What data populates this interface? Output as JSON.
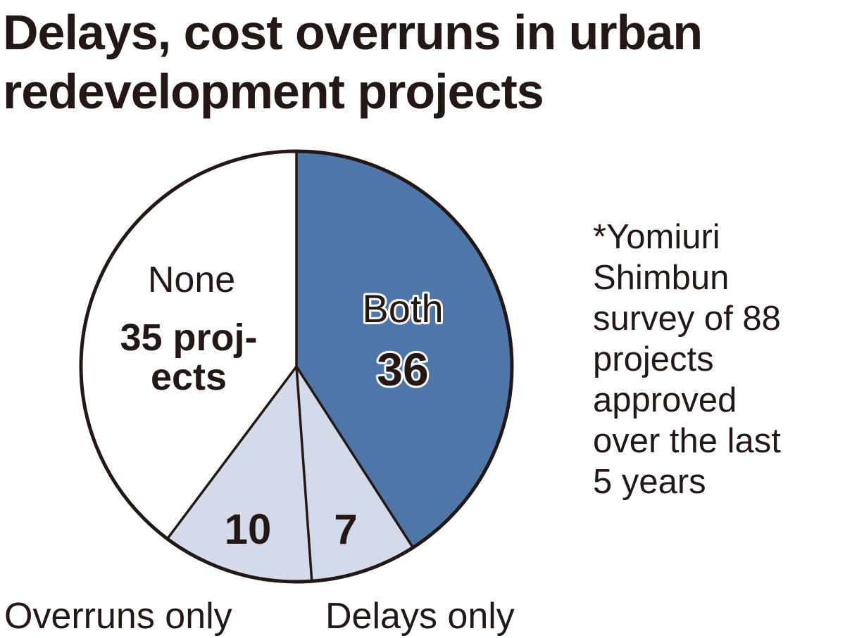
{
  "header": {
    "title_line1": "Delays, cost overruns in urban",
    "title_line2": "redevelopment projects"
  },
  "note": {
    "lines": [
      "*Yomiuri",
      "Shimbun",
      "survey of 88",
      "projects",
      "approved",
      "over the last",
      "5 years"
    ]
  },
  "chart_data": {
    "type": "pie",
    "title": "Delays, cost overruns in urban redevelopment projects",
    "total": 88,
    "start": "12 o'clock, clockwise",
    "slices": [
      {
        "name": "Both",
        "value": 36,
        "value_label": "36",
        "color": "#4f76a8",
        "label_color": "#ffffff"
      },
      {
        "name": "Delays only",
        "value": 7,
        "value_label": "7",
        "color": "#d3daea",
        "label_color": "#231815"
      },
      {
        "name": "Overruns only",
        "value": 10,
        "value_label": "10",
        "color": "#d3daea",
        "label_color": "#231815"
      },
      {
        "name": "None",
        "value": 35,
        "value_label": "35 proj-",
        "value_label_line2": "ects",
        "color": "#ffffff",
        "label_color": "#231815"
      }
    ],
    "outline_color": "#231815"
  }
}
